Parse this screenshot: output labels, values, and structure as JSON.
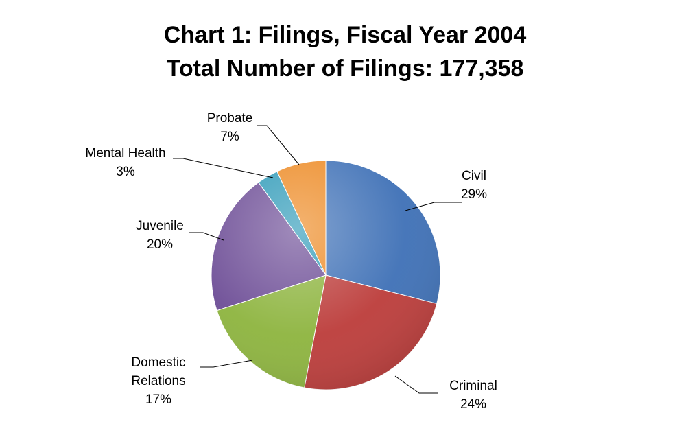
{
  "chart_data": {
    "type": "pie",
    "title": "Chart 1: Filings, Fiscal Year 2004",
    "subtitle": "Total Number of Filings: 177,358",
    "slices": [
      {
        "label": "Civil",
        "percent_label": "29%",
        "value": 29,
        "color": "#3e70b6"
      },
      {
        "label": "Criminal",
        "percent_label": "24%",
        "value": 24,
        "color": "#bc3c3a"
      },
      {
        "label": "Domestic Relations",
        "percent_label": "17%",
        "value": 17,
        "color": "#8db43e"
      },
      {
        "label": "Juvenile",
        "percent_label": "20%",
        "value": 20,
        "color": "#6d4d96"
      },
      {
        "label": "Mental Health",
        "percent_label": "3%",
        "value": 3,
        "color": "#2f9ab8"
      },
      {
        "label": "Probate",
        "percent_label": "7%",
        "value": 7,
        "color": "#ed8a24"
      }
    ],
    "start_angle_deg": 0,
    "direction": "clockwise",
    "labels_outside_with_leaders": true
  }
}
